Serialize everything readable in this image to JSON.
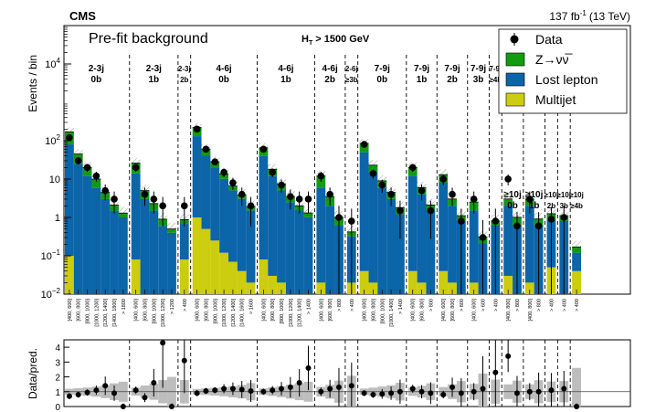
{
  "header": {
    "experiment": "CMS",
    "luminosity_main": "137 fb",
    "luminosity_sup": "-1",
    "luminosity_tail": "(13 TeV)",
    "plot_title": "Pre-fit background",
    "cut_main": "H",
    "cut_sub": "T",
    "cut_tail": "> 1500 GeV"
  },
  "legend": [
    {
      "key": "data",
      "label": "Data",
      "color": "#000000"
    },
    {
      "key": "znn",
      "label": "Z→νν̅",
      "color": "#119c11"
    },
    {
      "key": "lostlep",
      "label": "Lost lepton",
      "color": "#0b65a8"
    },
    {
      "key": "qcd",
      "label": "Multijet",
      "color": "#cccc10"
    }
  ],
  "chart_data": [
    {
      "type": "stacked-bar-log",
      "title": "Pre-fit background",
      "ylabel": "Events / bin",
      "ylim": [
        0.01,
        100000
      ],
      "yscale": "log",
      "y_ticks": [
        {
          "v": 0.01,
          "base": "10",
          "exp": "−2"
        },
        {
          "v": 0.1,
          "base": "10",
          "exp": "−1"
        },
        {
          "v": 1,
          "base": "1",
          "exp": ""
        },
        {
          "v": 10,
          "base": "10",
          "exp": ""
        },
        {
          "v": 100,
          "base": "10",
          "exp": "2"
        },
        {
          "v": 10000,
          "base": "10",
          "exp": "4"
        }
      ],
      "legend_position": "top-right",
      "colors": {
        "znn": "#119c11",
        "lostlep": "#0b65a8",
        "qcd": "#cccc10",
        "data": "#000000",
        "unc": "#888888"
      },
      "regions": [
        {
          "njet": "2-3j",
          "nb": "0b",
          "labels": [
            "[400, 600]",
            "[600, 800]",
            "[800, 1000]",
            "[1000, 1200]",
            "[1200, 1400]",
            "[1400, 1800]",
            "> 1800"
          ]
        },
        {
          "njet": "2-3j",
          "nb": "1b",
          "labels": [
            "[400, 600]",
            "[600, 800]",
            "[800, 1000]",
            "[1000, 1200]",
            "> 1200"
          ]
        },
        {
          "njet": "2-3j",
          "nb": "2b",
          "labels": [
            "> 400"
          ]
        },
        {
          "njet": "4-6j",
          "nb": "0b",
          "labels": [
            "[400, 600]",
            "[600, 800]",
            "[800, 1000]",
            "[1000, 1200]",
            "[1200, 1400]",
            "[1400, 1600]",
            "> 1600"
          ]
        },
        {
          "njet": "4-6j",
          "nb": "1b",
          "labels": [
            "[400, 600]",
            "[600, 800]",
            "[800, 1000]",
            "[1000, 1200]",
            "[1200, 1400]",
            "> 1400"
          ]
        },
        {
          "njet": "4-6j",
          "nb": "2b",
          "labels": [
            "[400, 600]",
            "[600, 800]",
            "> 800"
          ]
        },
        {
          "njet": "2-6j",
          "nb": "≥3b",
          "labels": [
            "> 400"
          ]
        },
        {
          "njet": "7-9j",
          "nb": "0b",
          "labels": [
            "[400, 600]",
            "[600, 800]",
            "[800, 1000]",
            "[1000, 1400]",
            "> 1400"
          ]
        },
        {
          "njet": "7-9j",
          "nb": "1b",
          "labels": [
            "[400, 600]",
            "[600, 800]",
            "> 800"
          ]
        },
        {
          "njet": "7-9j",
          "nb": "2b",
          "labels": [
            "[400, 600]",
            "[600, 800]",
            "> 800"
          ]
        },
        {
          "njet": "7-9j",
          "nb": "3b",
          "labels": [
            "[400, 600]",
            "> 600"
          ]
        },
        {
          "njet": "7-9j",
          "nb": "≥4b",
          "labels": [
            "> 400"
          ]
        },
        {
          "njet": "≥10j",
          "nb": "0b",
          "labels": [
            "[400, 800]",
            "> 800"
          ]
        },
        {
          "njet": "≥10j",
          "nb": "1b",
          "labels": [
            "[400, 800]",
            "> 800"
          ]
        },
        {
          "njet": "≥10j",
          "nb": "2b",
          "labels": [
            "> 400"
          ]
        },
        {
          "njet": "≥10j",
          "nb": "3b",
          "labels": [
            "> 400"
          ]
        },
        {
          "njet": "≥10j",
          "nb": "≥4b",
          "labels": [
            "> 400"
          ]
        }
      ],
      "series": [
        {
          "name": "Multijet",
          "key": "qcd",
          "values": [
            0.1,
            0,
            0,
            0,
            0,
            0,
            0,
            0.08,
            0,
            0,
            0,
            0,
            0.08,
            1,
            0.5,
            0.25,
            0.12,
            0.07,
            0.04,
            0.02,
            0.08,
            0.03,
            0.02,
            0.01,
            0.01,
            0.01,
            0.02,
            0.01,
            0.01,
            0.02,
            0.04,
            0.02,
            0.01,
            0.01,
            0.01,
            0.04,
            0.02,
            0.01,
            0.04,
            0.02,
            0.01,
            0.02,
            0.01,
            0.01,
            0.03,
            0.01,
            0.02,
            0.01,
            0.05,
            0.01,
            0.04
          ]
        },
        {
          "name": "Lost lepton",
          "key": "lostlep",
          "values": [
            80,
            25,
            12,
            6,
            3,
            1.5,
            1,
            14,
            3,
            1.5,
            0.6,
            0.4,
            0.6,
            130,
            40,
            20,
            10,
            5,
            3,
            1.5,
            40,
            12,
            5,
            2.5,
            1.5,
            1,
            6,
            2,
            0.6,
            0.3,
            50,
            15,
            6,
            3,
            1.2,
            12,
            4,
            1.5,
            8,
            2,
            0.8,
            1.5,
            0.2,
            0.6,
            2,
            0.6,
            2,
            0.6,
            0.8,
            0.8,
            0.08
          ]
        },
        {
          "name": "Z→νν̅",
          "key": "znn",
          "values": [
            90,
            20,
            8,
            4,
            1.5,
            0.6,
            0.3,
            12,
            2,
            0.8,
            0.3,
            0.1,
            0.2,
            90,
            20,
            8,
            3.5,
            1.5,
            0.8,
            0.4,
            25,
            6,
            2.5,
            1,
            0.5,
            0.3,
            6,
            1.5,
            0.4,
            0.1,
            35,
            8,
            3,
            1.5,
            0.6,
            8,
            2,
            0.6,
            5,
            1,
            0.3,
            1,
            0.1,
            0.2,
            1,
            0.4,
            1,
            0.3,
            0.4,
            0.3,
            0.05
          ]
        },
        {
          "name": "Data",
          "key": "data",
          "values": [
            120,
            30,
            20,
            12,
            5,
            3,
            0,
            20,
            4,
            3,
            2,
            0,
            2,
            200,
            60,
            28,
            15,
            8,
            4,
            2,
            60,
            15,
            7,
            3.5,
            3,
            3,
            12,
            4,
            1,
            0.8,
            80,
            14,
            7,
            4,
            1.5,
            20,
            5,
            1.5,
            10,
            4,
            0.8,
            3,
            0.3,
            0.8,
            10,
            0.6,
            3,
            0.6,
            0.9,
            1,
            0
          ]
        }
      ]
    },
    {
      "type": "ratio-errorbar",
      "ylabel": "Data/pred.",
      "ylim": [
        0,
        4.5
      ],
      "y_ticks": [
        "0",
        "1",
        "2",
        "3",
        "4"
      ],
      "values": [
        0.7,
        0.8,
        0.95,
        1.1,
        1.4,
        0.9,
        0,
        1.1,
        0.6,
        1.6,
        4.3,
        0,
        3.1,
        0.9,
        1.05,
        1.1,
        1.2,
        1.2,
        1.15,
        1.05,
        1.0,
        1.1,
        1.2,
        1.3,
        1.6,
        2.6,
        1.0,
        1.2,
        1.3,
        1.4,
        0.9,
        0.8,
        0.85,
        0.9,
        1.0,
        1.2,
        1.0,
        0.9,
        0.8,
        1.3,
        0.9,
        1.0,
        1.2,
        2.3,
        3.4,
        0.9,
        1.0,
        1.0,
        1.1,
        1.2,
        0
      ]
    }
  ]
}
